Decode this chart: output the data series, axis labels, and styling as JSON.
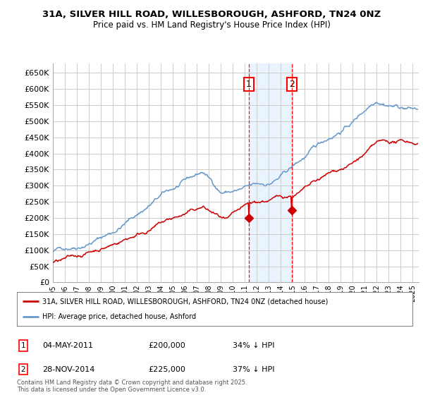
{
  "title_line1": "31A, SILVER HILL ROAD, WILLESBOROUGH, ASHFORD, TN24 0NZ",
  "title_line2": "Price paid vs. HM Land Registry's House Price Index (HPI)",
  "ylabel_ticks": [
    "£0",
    "£50K",
    "£100K",
    "£150K",
    "£200K",
    "£250K",
    "£300K",
    "£350K",
    "£400K",
    "£450K",
    "£500K",
    "£550K",
    "£600K",
    "£650K"
  ],
  "ytick_values": [
    0,
    50000,
    100000,
    150000,
    200000,
    250000,
    300000,
    350000,
    400000,
    450000,
    500000,
    550000,
    600000,
    650000
  ],
  "ylim": [
    0,
    680000
  ],
  "xlim_start": 1995.0,
  "xlim_end": 2025.5,
  "red_line_color": "#cc0000",
  "blue_line_color": "#6699cc",
  "marker1_date": 2011.34,
  "marker1_value": 200000,
  "marker1_label": "1",
  "marker1_date_str": "04-MAY-2011",
  "marker1_price": "£200,000",
  "marker1_hpi": "34% ↓ HPI",
  "marker2_date": 2014.91,
  "marker2_value": 225000,
  "marker2_label": "2",
  "marker2_date_str": "28-NOV-2014",
  "marker2_price": "£225,000",
  "marker2_hpi": "37% ↓ HPI",
  "legend_label_red": "31A, SILVER HILL ROAD, WILLESBOROUGH, ASHFORD, TN24 0NZ (detached house)",
  "legend_label_blue": "HPI: Average price, detached house, Ashford",
  "footnote": "Contains HM Land Registry data © Crown copyright and database right 2025.\nThis data is licensed under the Open Government Licence v3.0.",
  "background_color": "#ffffff",
  "grid_color": "#cccccc",
  "shade_color": "#ddeeff"
}
